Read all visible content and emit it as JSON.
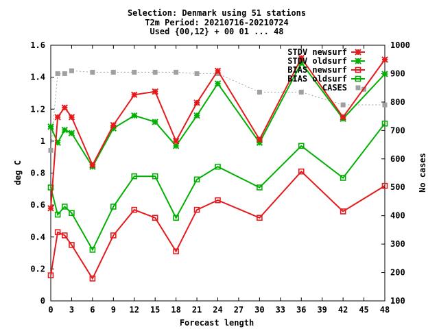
{
  "chart_data": {
    "type": "line",
    "title_lines": [
      "Selection: Denmark using    51 stations",
      "T2m   Period: 20210716-20210724",
      "Used {00,12} + 00 01 ... 48"
    ],
    "xlabel": "Forecast length",
    "ylabel": "deg C",
    "y2label": "No cases",
    "x_ticks": [
      "0",
      "3",
      "6",
      "9",
      "12",
      "15",
      "18",
      "21",
      "24",
      "27",
      "30",
      "33",
      "36",
      "39",
      "42",
      "45",
      "48"
    ],
    "y_ticks": [
      "0",
      "0.2",
      "0.4",
      "0.6",
      "0.8",
      "1",
      "1.2",
      "1.4",
      "1.6"
    ],
    "y2_ticks": [
      "100",
      "200",
      "300",
      "400",
      "500",
      "600",
      "700",
      "800",
      "900",
      "1000"
    ],
    "xlim": [
      0,
      48
    ],
    "ylim": [
      0,
      1.6
    ],
    "y2lim": [
      100,
      1000
    ],
    "x": [
      0,
      1,
      2,
      3,
      6,
      9,
      12,
      15,
      18,
      21,
      24,
      30,
      36,
      42,
      48
    ],
    "series": [
      {
        "name": "STDV newsurf",
        "color": "#e41a1c",
        "marker": "x-star",
        "axis": "y",
        "values": [
          0.58,
          1.15,
          1.21,
          1.15,
          0.85,
          1.1,
          1.29,
          1.31,
          1.0,
          1.24,
          1.44,
          1.01,
          1.52,
          1.15,
          1.51
        ]
      },
      {
        "name": "STDV oldsurf",
        "color": "#00b000",
        "marker": "x-star",
        "axis": "y",
        "values": [
          1.09,
          0.99,
          1.07,
          1.05,
          0.84,
          1.08,
          1.16,
          1.12,
          0.97,
          1.16,
          1.36,
          0.99,
          1.49,
          1.14,
          1.42
        ]
      },
      {
        "name": "BIAS newsurf",
        "color": "#e41a1c",
        "marker": "square",
        "axis": "y",
        "values": [
          0.16,
          0.43,
          0.41,
          0.35,
          0.14,
          0.41,
          0.57,
          0.52,
          0.31,
          0.57,
          0.63,
          0.52,
          0.81,
          0.56,
          0.72
        ]
      },
      {
        "name": "BIAS oldsurf",
        "color": "#00b000",
        "marker": "square",
        "axis": "y",
        "values": [
          0.71,
          0.54,
          0.59,
          0.55,
          0.32,
          0.59,
          0.78,
          0.78,
          0.52,
          0.76,
          0.84,
          0.71,
          0.97,
          0.77,
          1.11
        ]
      },
      {
        "name": "CASES",
        "color": "#a0a0a0",
        "marker": "filled-square",
        "axis": "y2",
        "connect": "dotted",
        "values": [
          630,
          900,
          900,
          910,
          905,
          905,
          905,
          905,
          905,
          900,
          900,
          835,
          835,
          790,
          790
        ]
      }
    ],
    "cases_extra_points": [
      [
        45,
        845
      ]
    ],
    "legend_placement": "top-right",
    "grid": false
  }
}
